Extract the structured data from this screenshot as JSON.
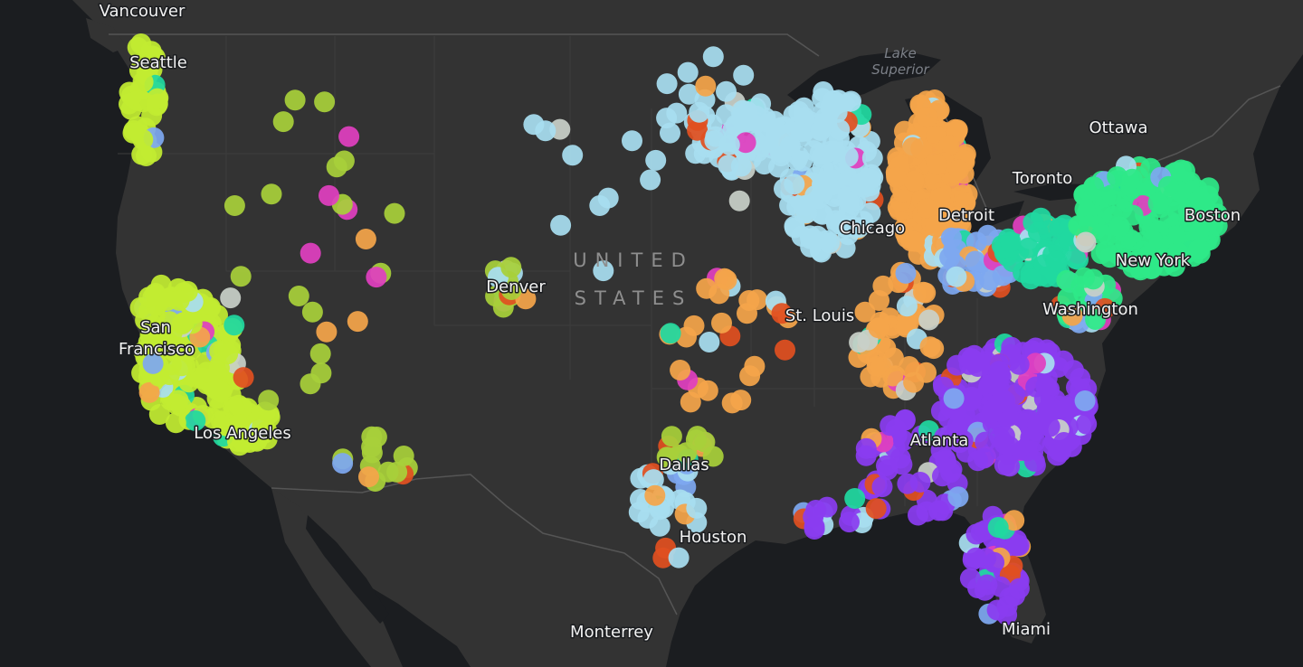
{
  "map": {
    "country_label": [
      "UNITED",
      "STATES"
    ],
    "water_label": [
      "Lake",
      "Superior"
    ],
    "cities": [
      "Vancouver",
      "Seattle",
      "San",
      "Francisco",
      "Los Angeles",
      "Denver",
      "Dallas",
      "Houston",
      "Monterrey",
      "St. Louis",
      "Chicago",
      "Detroit",
      "Toronto",
      "Ottawa",
      "Boston",
      "New York",
      "Washington",
      "Atlanta",
      "Miami"
    ],
    "colors": {
      "land": "#333333",
      "ocean": "#1b1d20",
      "border": "#555555",
      "west": "#c2ec32",
      "rockies": "#a8d03a",
      "midwest": "#a8def0",
      "great_lakes": "#f4a54a",
      "northeast": "#2ee888",
      "southeast": "#8a3cf0",
      "misc_pink": "#e040c0",
      "misc_teal": "#20d8a0",
      "misc_blue": "#7ea8f0",
      "misc_red": "#e05020",
      "misc_gray": "#c8d0c8"
    }
  }
}
